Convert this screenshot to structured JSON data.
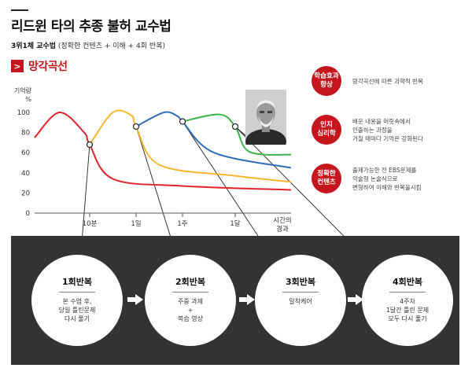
{
  "header": {
    "title": "리드윈 타의 추종 불허 교수법",
    "subtitle_bold": "3위1체 교수법",
    "subtitle_rest": " (정확한 컨텐츠 + 이해 + 4회 반복)"
  },
  "section": {
    "chevron": ">",
    "title": "망각곡선"
  },
  "chart_data": {
    "type": "line",
    "ylabel": "기억량 %",
    "yticks": [
      0,
      20,
      40,
      60,
      80,
      100
    ],
    "xticks": [
      "10분",
      "1일",
      "1주",
      "1달"
    ],
    "xlabel": "시간의 경과",
    "ylim": [
      0,
      100
    ],
    "grid": false,
    "series": [
      {
        "color": "#e0242a",
        "values": [
          [
            0,
            75
          ],
          [
            0.45,
            100
          ],
          [
            0.9,
            80
          ],
          [
            1,
            68
          ],
          [
            1.5,
            34
          ],
          [
            3,
            27
          ],
          [
            6,
            23
          ]
        ]
      },
      {
        "color": "#f5b731",
        "values": [
          [
            1,
            68
          ],
          [
            1.5,
            100
          ],
          [
            1.9,
            97
          ],
          [
            2,
            86
          ],
          [
            2.5,
            48
          ],
          [
            4,
            37
          ],
          [
            6,
            31
          ]
        ]
      },
      {
        "color": "#2e6fb5",
        "values": [
          [
            2,
            86
          ],
          [
            2.6,
            100
          ],
          [
            2.9,
            96
          ],
          [
            3,
            91
          ],
          [
            3.6,
            60
          ],
          [
            6,
            45
          ]
        ]
      },
      {
        "color": "#3bb54a",
        "values": [
          [
            3,
            91
          ],
          [
            3.7,
            98
          ],
          [
            4,
            86
          ],
          [
            4.4,
            61
          ],
          [
            6,
            58
          ]
        ]
      }
    ],
    "markers": [
      {
        "x": 1,
        "y": 68
      },
      {
        "x": 2,
        "y": 86
      },
      {
        "x": 3,
        "y": 91
      },
      {
        "x": 4,
        "y": 86
      }
    ]
  },
  "side": [
    {
      "badge_line1": "학습효과",
      "badge_line2": "향상",
      "desc": [
        "망각곡선에 따른 과학적 반복"
      ]
    },
    {
      "badge_line1": "인지",
      "badge_line2": "심리학",
      "desc": [
        "배운 내용을 머릿속에서",
        "인출하는 과정을",
        "거칠 때마다 기억은 강화된다"
      ]
    },
    {
      "badge_line1": "정확한",
      "badge_line2": "컨텐츠",
      "desc": [
        "출제가능한 전 EBS문제를",
        "악술형 논술식으로",
        "변형하여 이해와 반복을시킴"
      ]
    }
  ],
  "steps": [
    {
      "name": "1회반복",
      "desc": [
        "본 수업 후,",
        "당일 틀린문제",
        "다시 풀기"
      ]
    },
    {
      "name": "2회반복",
      "desc": [
        "주중 과제",
        "+",
        "복습 영상"
      ]
    },
    {
      "name": "3회반복",
      "desc": [
        "밀착케어"
      ]
    },
    {
      "name": "4회반복",
      "desc": [
        "4주차",
        "1달간 틀린 문제",
        "모두 다시 풀기"
      ]
    }
  ],
  "colors": {
    "accent": "#c4161c",
    "panel": "#333333"
  },
  "icons": {
    "portrait": "portrait-photo",
    "arrow": "right-arrow-icon"
  }
}
